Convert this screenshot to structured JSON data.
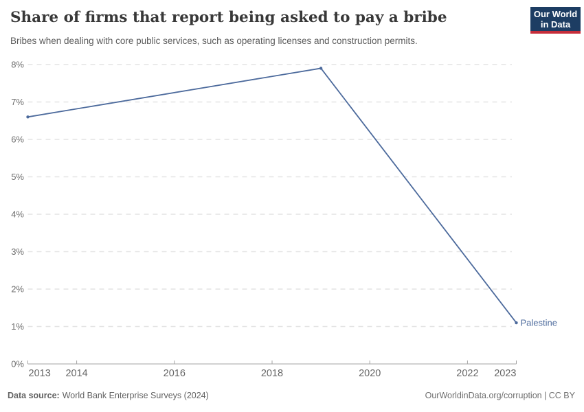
{
  "header": {
    "title": "Share of firms that report being asked to pay a bribe",
    "subtitle": "Bribes when dealing with core public services, such as operating licenses and construction permits.",
    "logo": {
      "line1": "Our World",
      "line2": "in Data",
      "bg_color": "#1d3d63",
      "accent_color": "#c62d3a"
    }
  },
  "chart_data": {
    "type": "line",
    "title": "Share of firms that report being asked to pay a bribe",
    "subtitle": "Bribes when dealing with core public services, such as operating licenses and construction permits.",
    "series": [
      {
        "name": "Palestine",
        "color": "#4c6a9c",
        "points": [
          {
            "x": 2013,
            "y": 6.6
          },
          {
            "x": 2019,
            "y": 7.9
          },
          {
            "x": 2023,
            "y": 1.1
          }
        ]
      }
    ],
    "x_ticks": [
      2013,
      2014,
      2016,
      2018,
      2020,
      2022,
      2023
    ],
    "y_ticks": [
      0,
      1,
      2,
      3,
      4,
      5,
      6,
      7,
      8
    ],
    "y_tick_suffix": "%",
    "xlim": [
      2013,
      2023
    ],
    "ylim": [
      0,
      8
    ],
    "grid": "horizontal-dashed",
    "legend_position": "end-of-line-label",
    "colors": {
      "gridline": "#e4e4e4",
      "axis": "#a3a3a3",
      "tick_label": "#6e6e6e"
    }
  },
  "footer": {
    "source_label": "Data source:",
    "source_text": "World Bank Enterprise Surveys (2024)",
    "credit": "OurWorldinData.org/corruption | CC BY"
  }
}
